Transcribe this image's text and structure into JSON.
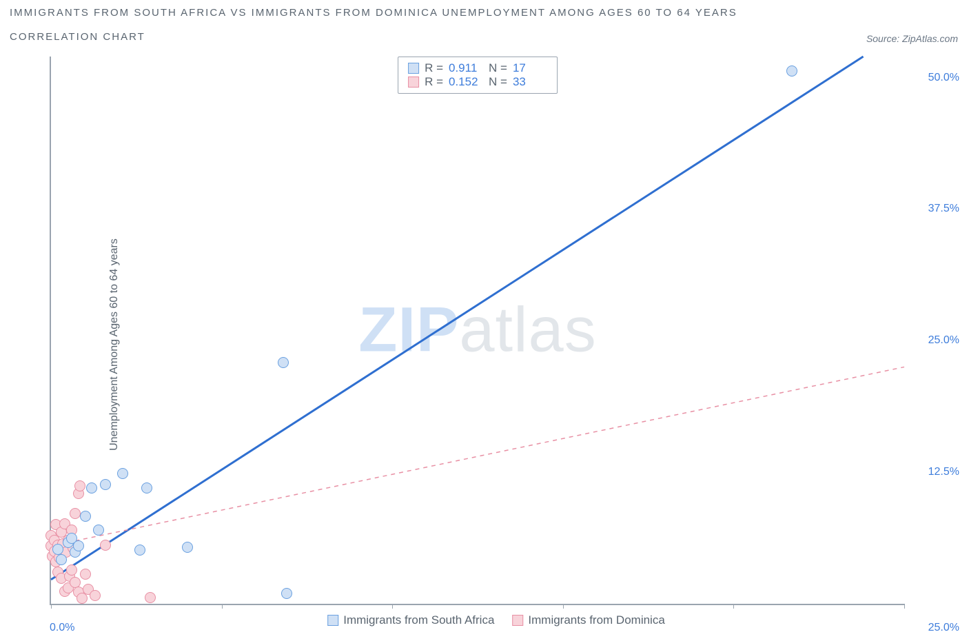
{
  "title_line1": "IMMIGRANTS FROM SOUTH AFRICA VS IMMIGRANTS FROM DOMINICA UNEMPLOYMENT AMONG AGES 60 TO 64 YEARS",
  "title_line2": "CORRELATION CHART",
  "source_label": "Source: ZipAtlas.com",
  "y_axis_label": "Unemployment Among Ages 60 to 64 years",
  "watermark": {
    "bold": "ZIP",
    "rest": "atlas"
  },
  "chart": {
    "type": "scatter-correlation",
    "background_color": "#ffffff",
    "axis_color": "#9aa4af",
    "x_range": [
      0,
      25
    ],
    "y_range": [
      0,
      52
    ],
    "x_ticks": [
      0,
      5,
      10,
      15,
      20,
      25
    ],
    "y_ticks": [
      {
        "v": 12.5,
        "label": "12.5%"
      },
      {
        "v": 25.0,
        "label": "25.0%"
      },
      {
        "v": 37.5,
        "label": "37.5%"
      },
      {
        "v": 50.0,
        "label": "50.0%"
      }
    ],
    "x_start_label": "0.0%",
    "x_end_label": "25.0%",
    "marker_radius": 8,
    "series": {
      "sa": {
        "label": "Immigrants from South Africa",
        "fill": "#cfe0f5",
        "stroke": "#6aa0e0",
        "line_color": "#2f6fd0",
        "line_width": 3,
        "line_dash": "none",
        "trend": {
          "x1": 0,
          "y1": 2.3,
          "x2": 23.8,
          "y2": 52
        },
        "points": [
          [
            0.2,
            5.2
          ],
          [
            0.3,
            4.2
          ],
          [
            0.5,
            5.8
          ],
          [
            0.6,
            6.2
          ],
          [
            0.7,
            4.9
          ],
          [
            0.8,
            5.5
          ],
          [
            1.0,
            8.3
          ],
          [
            1.2,
            11.0
          ],
          [
            1.4,
            7.0
          ],
          [
            1.6,
            11.3
          ],
          [
            2.1,
            12.4
          ],
          [
            2.8,
            11.0
          ],
          [
            2.6,
            5.1
          ],
          [
            4.0,
            5.4
          ],
          [
            6.8,
            22.9
          ],
          [
            6.9,
            1.0
          ],
          [
            21.7,
            50.6
          ]
        ]
      },
      "dom": {
        "label": "Immigrants from Dominica",
        "fill": "#f8d3da",
        "stroke": "#e890a4",
        "line_color": "#e890a4",
        "line_width": 1.5,
        "line_dash": "6 6",
        "trend": {
          "x1": 0,
          "y1": 5.5,
          "x2": 25,
          "y2": 22.5
        },
        "points": [
          [
            0.0,
            5.5
          ],
          [
            0.0,
            6.5
          ],
          [
            0.05,
            4.5
          ],
          [
            0.1,
            5.0
          ],
          [
            0.1,
            6.0
          ],
          [
            0.15,
            4.0
          ],
          [
            0.15,
            7.5
          ],
          [
            0.2,
            3.0
          ],
          [
            0.2,
            5.6
          ],
          [
            0.25,
            4.4
          ],
          [
            0.3,
            6.8
          ],
          [
            0.3,
            2.4
          ],
          [
            0.35,
            5.7
          ],
          [
            0.4,
            7.6
          ],
          [
            0.4,
            1.2
          ],
          [
            0.45,
            4.9
          ],
          [
            0.5,
            6.0
          ],
          [
            0.5,
            1.5
          ],
          [
            0.55,
            2.6
          ],
          [
            0.6,
            7.0
          ],
          [
            0.6,
            3.2
          ],
          [
            0.65,
            5.3
          ],
          [
            0.7,
            8.6
          ],
          [
            0.7,
            2.0
          ],
          [
            0.8,
            1.1
          ],
          [
            0.8,
            10.5
          ],
          [
            0.85,
            11.2
          ],
          [
            0.9,
            0.5
          ],
          [
            1.0,
            2.8
          ],
          [
            1.1,
            1.4
          ],
          [
            1.3,
            0.8
          ],
          [
            1.6,
            5.6
          ],
          [
            2.9,
            0.6
          ]
        ]
      }
    },
    "stats": [
      {
        "swatch": "sa",
        "r_label": "R =",
        "r_val": "0.911",
        "n_label": "N =",
        "n_val": "17"
      },
      {
        "swatch": "dom",
        "r_label": "R =",
        "r_val": "0.152",
        "n_label": "N =",
        "n_val": "33"
      }
    ]
  }
}
